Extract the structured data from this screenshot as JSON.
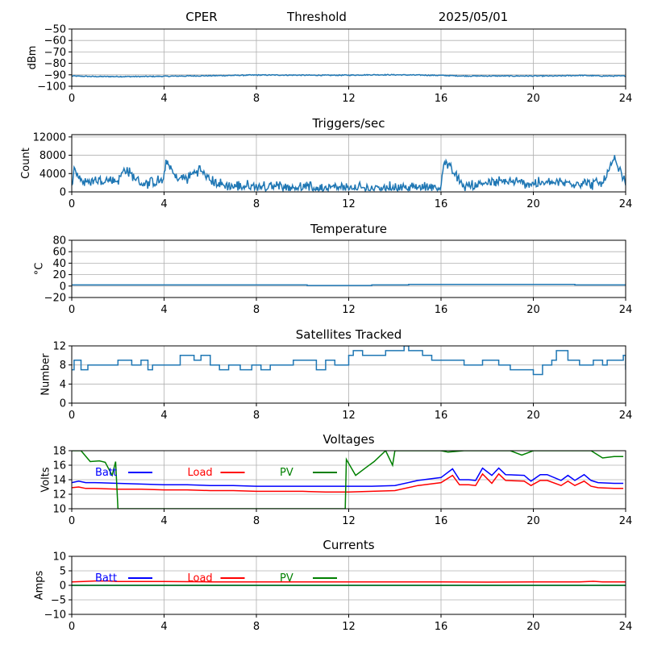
{
  "header": {
    "site": "CPER",
    "mode": "Threshold",
    "date": "2025/05/01"
  },
  "colors": {
    "series": "#1f77b4",
    "batt": "#0000ff",
    "load": "#ff0000",
    "pv": "#008000",
    "grid": "#b0b0b0"
  },
  "chart_data": [
    {
      "id": "signal",
      "type": "line",
      "title": "",
      "xlabel": "",
      "ylabel": "dBm",
      "xlim": [
        0,
        24
      ],
      "ylim": [
        -100,
        -50
      ],
      "xticks": [
        0,
        4,
        8,
        12,
        16,
        20,
        24
      ],
      "yticks": [
        -100,
        -90,
        -80,
        -70,
        -60,
        -50
      ],
      "xtick_labels": [
        "0",
        "4",
        "8",
        "12",
        "16",
        "20",
        "24"
      ],
      "ytick_labels": [
        "−100",
        "−90",
        "−80",
        "−70",
        "−60",
        "−50"
      ],
      "grid": true,
      "series": [
        {
          "color": "#1f77b4",
          "noise": 0.4,
          "x": [
            0,
            1,
            2,
            3,
            4,
            5,
            6,
            7,
            8,
            9,
            10,
            11,
            12,
            13,
            14,
            15,
            16,
            17,
            18,
            19,
            20,
            21,
            22,
            23,
            24
          ],
          "y": [
            -91,
            -91.5,
            -91.5,
            -91.5,
            -91.3,
            -91,
            -90.8,
            -90.5,
            -90.2,
            -90.2,
            -90.3,
            -90.4,
            -90.3,
            -90,
            -90,
            -90.2,
            -90.5,
            -91,
            -91,
            -91,
            -91,
            -91,
            -90.5,
            -91,
            -91
          ]
        }
      ]
    },
    {
      "id": "triggers",
      "type": "line",
      "title": "Triggers/sec",
      "xlabel": "",
      "ylabel": "Count",
      "xlim": [
        0,
        24
      ],
      "ylim": [
        0,
        12500
      ],
      "xticks": [
        0,
        4,
        8,
        12,
        16,
        20,
        24
      ],
      "yticks": [
        0,
        4000,
        8000,
        12000
      ],
      "xtick_labels": [
        "0",
        "4",
        "8",
        "12",
        "16",
        "20",
        "24"
      ],
      "ytick_labels": [
        "0",
        "4000",
        "8000",
        "12000"
      ],
      "grid": true,
      "series": [
        {
          "color": "#1f77b4",
          "noise": 1100,
          "x": [
            0,
            0.1,
            0.5,
            1,
            2,
            2.3,
            3,
            4,
            4.1,
            4.5,
            5,
            5.5,
            6,
            6.5,
            7,
            8,
            9,
            10,
            11,
            12,
            13,
            14,
            15,
            16,
            16.1,
            17,
            18,
            19,
            20,
            21,
            22,
            23,
            23.5,
            24
          ],
          "y": [
            1500,
            5000,
            2000,
            2500,
            2500,
            5000,
            1800,
            2500,
            7000,
            3000,
            3000,
            5000,
            2500,
            1500,
            1200,
            1200,
            1200,
            1000,
            900,
            800,
            800,
            1000,
            1000,
            1000,
            7000,
            1200,
            2000,
            2200,
            1800,
            2000,
            2000,
            1800,
            7000,
            1800
          ]
        }
      ]
    },
    {
      "id": "temperature",
      "type": "line",
      "title": "Temperature",
      "xlabel": "",
      "ylabel": "°C",
      "xlim": [
        0,
        24
      ],
      "ylim": [
        -20,
        80
      ],
      "xticks": [
        0,
        4,
        8,
        12,
        16,
        20,
        24
      ],
      "yticks": [
        -20,
        0,
        20,
        40,
        60,
        80
      ],
      "xtick_labels": [
        "0",
        "4",
        "8",
        "12",
        "16",
        "20",
        "24"
      ],
      "ytick_labels": [
        "−20",
        "0",
        "20",
        "40",
        "60",
        "80"
      ],
      "grid": true,
      "series": [
        {
          "color": "#1f77b4",
          "noise": 0,
          "step": true,
          "x": [
            0,
            10.2,
            13,
            14.6,
            21.8,
            24
          ],
          "y": [
            2,
            1,
            2,
            3,
            2,
            2
          ]
        }
      ]
    },
    {
      "id": "satellites",
      "type": "line",
      "title": "Satellites Tracked",
      "xlabel": "",
      "ylabel": "Number",
      "xlim": [
        0,
        24
      ],
      "ylim": [
        0,
        12
      ],
      "xticks": [
        0,
        4,
        8,
        12,
        16,
        20,
        24
      ],
      "yticks": [
        0,
        4,
        8,
        12
      ],
      "xtick_labels": [
        "0",
        "4",
        "8",
        "12",
        "16",
        "20",
        "24"
      ],
      "ytick_labels": [
        "0",
        "4",
        "8",
        "12"
      ],
      "grid": true,
      "series": [
        {
          "color": "#1f77b4",
          "noise": 0,
          "step": true,
          "x": [
            0,
            0.1,
            0.4,
            0.7,
            1.7,
            2,
            2.6,
            3,
            3.3,
            3.5,
            4,
            4.7,
            5,
            5.3,
            5.6,
            6,
            6.4,
            6.8,
            7.3,
            7.8,
            8.2,
            8.6,
            9.2,
            9.6,
            10,
            10.6,
            11,
            11.4,
            12,
            12.2,
            12.6,
            13,
            13.6,
            14,
            14.4,
            14.6,
            15.2,
            15.6,
            16,
            16.6,
            17,
            17.4,
            17.8,
            18.5,
            19,
            19.5,
            20,
            20.4,
            20.8,
            21,
            21.5,
            22,
            22.6,
            23,
            23.2,
            23.6,
            23.9,
            24
          ],
          "y": [
            7,
            9,
            7,
            8,
            8,
            9,
            8,
            9,
            7,
            8,
            8,
            10,
            10,
            9,
            10,
            8,
            7,
            8,
            7,
            8,
            7,
            8,
            8,
            9,
            9,
            7,
            9,
            8,
            10,
            11,
            10,
            10,
            11,
            11,
            12,
            11,
            10,
            9,
            9,
            9,
            8,
            8,
            9,
            8,
            7,
            7,
            6,
            8,
            9,
            11,
            9,
            8,
            9,
            8,
            9,
            9,
            10,
            7
          ]
        }
      ]
    },
    {
      "id": "voltages",
      "type": "line",
      "title": "Voltages",
      "xlabel": "",
      "ylabel": "Volts",
      "xlim": [
        0,
        24
      ],
      "ylim": [
        10,
        18
      ],
      "xticks": [
        0,
        4,
        8,
        12,
        16,
        20,
        24
      ],
      "yticks": [
        10,
        12,
        14,
        16,
        18
      ],
      "xtick_labels": [
        "0",
        "4",
        "8",
        "12",
        "16",
        "20",
        "24"
      ],
      "ytick_labels": [
        "10",
        "12",
        "14",
        "16",
        "18"
      ],
      "grid": true,
      "legend": [
        {
          "label": "Batt",
          "color": "#0000ff"
        },
        {
          "label": "Load",
          "color": "#ff0000"
        },
        {
          "label": "PV",
          "color": "#008000"
        }
      ],
      "series": [
        {
          "name": "Batt",
          "color": "#0000ff",
          "noise": 0,
          "x": [
            0,
            0.3,
            0.6,
            1,
            2,
            3,
            4,
            5,
            6,
            7,
            8,
            9,
            10,
            11,
            12,
            13,
            14,
            15,
            16,
            16.5,
            16.8,
            17.2,
            17.5,
            17.8,
            18.2,
            18.5,
            18.8,
            19.6,
            19.9,
            20.3,
            20.6,
            21.2,
            21.5,
            21.8,
            22.2,
            22.5,
            22.8,
            23.5,
            23.9
          ],
          "y": [
            13.6,
            13.8,
            13.6,
            13.6,
            13.5,
            13.4,
            13.3,
            13.3,
            13.2,
            13.2,
            13.1,
            13.1,
            13.1,
            13.1,
            13.1,
            13.1,
            13.2,
            13.9,
            14.3,
            15.5,
            14.0,
            14.0,
            13.9,
            15.6,
            14.6,
            15.6,
            14.7,
            14.6,
            13.8,
            14.7,
            14.7,
            13.9,
            14.6,
            13.9,
            14.7,
            13.9,
            13.6,
            13.5,
            13.5
          ]
        },
        {
          "name": "Load",
          "color": "#ff0000",
          "noise": 0,
          "x": [
            0,
            0.3,
            0.6,
            1,
            2,
            3,
            4,
            5,
            6,
            7,
            8,
            9,
            10,
            11,
            12,
            13,
            14,
            15,
            16,
            16.5,
            16.8,
            17.2,
            17.5,
            17.8,
            18.2,
            18.5,
            18.8,
            19.6,
            19.9,
            20.3,
            20.6,
            21.2,
            21.5,
            21.8,
            22.2,
            22.5,
            22.8,
            23.5,
            23.9
          ],
          "y": [
            12.9,
            13.0,
            12.8,
            12.8,
            12.7,
            12.7,
            12.6,
            12.6,
            12.5,
            12.5,
            12.4,
            12.4,
            12.4,
            12.3,
            12.3,
            12.4,
            12.5,
            13.2,
            13.6,
            14.6,
            13.3,
            13.3,
            13.2,
            14.8,
            13.5,
            14.8,
            13.9,
            13.8,
            13.2,
            13.9,
            13.9,
            13.2,
            13.8,
            13.2,
            13.8,
            13.1,
            12.9,
            12.8,
            12.8
          ]
        },
        {
          "name": "PV",
          "color": "#008000",
          "noise": 0,
          "x": [
            0,
            0.4,
            0.8,
            1.2,
            1.45,
            1.75,
            1.9,
            2.0,
            11.85,
            11.9,
            12.3,
            12.8,
            13.1,
            13.6,
            13.9,
            14.0,
            14.5,
            16,
            16.3,
            17,
            18,
            19,
            19.5,
            20,
            21,
            22,
            22.5,
            23,
            23.5,
            23.9
          ],
          "y": [
            18,
            18,
            16.5,
            16.6,
            16.4,
            14.6,
            16.5,
            10,
            10,
            16.8,
            14.6,
            15.8,
            16.5,
            18,
            16.0,
            18,
            18,
            18,
            17.8,
            18,
            18,
            18,
            17.4,
            18,
            18,
            18,
            18,
            17.0,
            17.2,
            17.2
          ]
        }
      ]
    },
    {
      "id": "currents",
      "type": "line",
      "title": "Currents",
      "xlabel": "",
      "ylabel": "Amps",
      "xlim": [
        0,
        24
      ],
      "ylim": [
        -10,
        10
      ],
      "xticks": [
        0,
        4,
        8,
        12,
        16,
        20,
        24
      ],
      "yticks": [
        -10,
        -5,
        0,
        5,
        10
      ],
      "xtick_labels": [
        "0",
        "4",
        "8",
        "12",
        "16",
        "20",
        "24"
      ],
      "ytick_labels": [
        "−10",
        "−5",
        "0",
        "5",
        "10"
      ],
      "grid": true,
      "legend": [
        {
          "label": "Batt",
          "color": "#0000ff"
        },
        {
          "label": "Load",
          "color": "#ff0000"
        },
        {
          "label": "PV",
          "color": "#008000"
        }
      ],
      "series": [
        {
          "name": "Batt",
          "color": "#0000ff",
          "noise": 0,
          "x": [
            0,
            24
          ],
          "y": [
            0,
            0
          ]
        },
        {
          "name": "Load",
          "color": "#ff0000",
          "noise": 0,
          "x": [
            0,
            0.5,
            1,
            1.6,
            2,
            4,
            6,
            8,
            10,
            12,
            14,
            16,
            18,
            20,
            22,
            22.6,
            23,
            24
          ],
          "y": [
            1.2,
            1.3,
            1.5,
            1.5,
            1.3,
            1.3,
            1.2,
            1.2,
            1.2,
            1.2,
            1.2,
            1.2,
            1.1,
            1.2,
            1.2,
            1.4,
            1.2,
            1.2
          ]
        },
        {
          "name": "PV",
          "color": "#008000",
          "noise": 0,
          "x": [
            0,
            24
          ],
          "y": [
            0,
            0
          ]
        }
      ]
    }
  ]
}
